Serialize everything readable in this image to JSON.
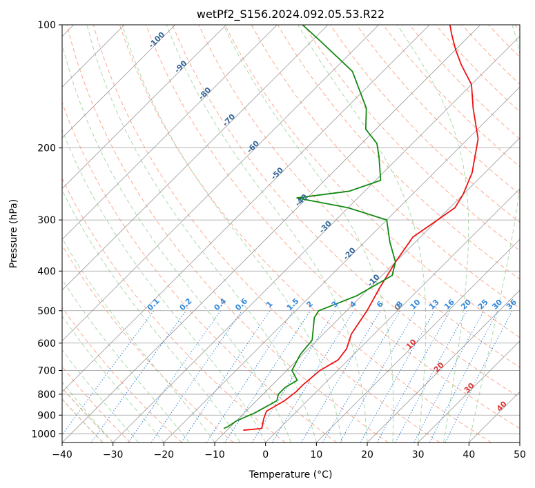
{
  "chart_data": {
    "type": "line",
    "title": "wetPf2_S156.2024.092.05.53.R22",
    "xlabel": "Temperature (°C)",
    "ylabel": "Pressure (hPa)",
    "xlim": [
      -40,
      50
    ],
    "ylim": [
      1050,
      100
    ],
    "y_scale": "log",
    "skew": 45,
    "x_ticks": [
      "−40",
      "−30",
      "−20",
      "−10",
      "0",
      "10",
      "20",
      "30",
      "40",
      "50"
    ],
    "x_tick_values": [
      -40,
      -30,
      -20,
      -10,
      0,
      10,
      20,
      30,
      40,
      50
    ],
    "y_ticks": [
      "1000",
      "900",
      "800",
      "700",
      "600",
      "500",
      "400",
      "300",
      "200",
      "100"
    ],
    "y_tick_values": [
      1000,
      900,
      800,
      700,
      600,
      500,
      400,
      300,
      200,
      100
    ],
    "grid": true,
    "colors": {
      "temperature": "#ee1111",
      "dewpoint": "#118811",
      "isotherm": "#999999",
      "dry_adiabat": "#fca98d",
      "moist_adiabat": "#a9d9a9",
      "mixing_ratio": "#3388dd",
      "ice_adiabat": "#d9c2a6",
      "dry_label": "#dd3333",
      "moist_label": "#336699",
      "mixing_label": "#3388dd"
    },
    "series": [
      {
        "name": "temperature",
        "points": [
          [
            -6.8,
            980
          ],
          [
            -3.5,
            970
          ],
          [
            -5,
            920
          ],
          [
            -6,
            880
          ],
          [
            -4.5,
            830
          ],
          [
            -4,
            790
          ],
          [
            -4,
            760
          ],
          [
            -3.5,
            700
          ],
          [
            -2,
            660
          ],
          [
            -2.5,
            620
          ],
          [
            -4.5,
            570
          ],
          [
            -6,
            500
          ],
          [
            -8,
            440
          ],
          [
            -10,
            380
          ],
          [
            -11.5,
            330
          ],
          [
            -10,
            300
          ],
          [
            -9,
            280
          ],
          [
            -10,
            260
          ],
          [
            -12.5,
            230
          ],
          [
            -18,
            190
          ],
          [
            -25,
            160
          ],
          [
            -30,
            140
          ],
          [
            -36,
            125
          ],
          [
            -40,
            115
          ],
          [
            -44,
            105
          ],
          [
            -46,
            100
          ]
        ]
      },
      {
        "name": "dewpoint",
        "points": [
          [
            -11,
            970
          ],
          [
            -10.5,
            960
          ],
          [
            -10,
            930
          ],
          [
            -8,
            890
          ],
          [
            -7,
            860
          ],
          [
            -6,
            830
          ],
          [
            -7,
            800
          ],
          [
            -7,
            770
          ],
          [
            -6,
            740
          ],
          [
            -9,
            700
          ],
          [
            -10.5,
            640
          ],
          [
            -11,
            590
          ],
          [
            -15,
            520
          ],
          [
            -15.5,
            500
          ],
          [
            -11,
            460
          ],
          [
            -8,
            410
          ],
          [
            -10,
            380
          ],
          [
            -15,
            340
          ],
          [
            -20,
            300
          ],
          [
            -30,
            280
          ],
          [
            -42,
            265
          ],
          [
            -33,
            255
          ],
          [
            -29,
            240
          ],
          [
            -34,
            210
          ],
          [
            -37,
            195
          ],
          [
            -42,
            180
          ],
          [
            -46,
            160
          ],
          [
            -56,
            130
          ],
          [
            -68,
            110
          ],
          [
            -75,
            100
          ]
        ]
      }
    ],
    "isotherm_values": [
      -120,
      -110,
      -100,
      -90,
      -80,
      -70,
      -60,
      -50,
      -40,
      -30,
      -20,
      -10,
      0,
      10,
      20,
      30,
      40,
      50
    ],
    "dry_adiabat_values": [
      -30,
      -20,
      -10,
      0,
      10,
      20,
      30,
      40,
      50,
      60,
      70,
      80,
      90,
      100,
      110,
      120,
      130,
      140,
      150,
      160,
      170,
      180,
      190,
      200,
      210,
      220
    ],
    "moist_adiabat_values": [
      -30,
      -25,
      -20,
      -15,
      -10,
      -5,
      0,
      5,
      10,
      15,
      20,
      25,
      30,
      35,
      40
    ],
    "mixing_ratio_values": [
      0.1,
      0.2,
      0.4,
      0.6,
      1,
      1.5,
      2,
      3,
      4,
      6,
      8,
      10,
      13,
      16,
      20,
      25,
      30,
      36
    ],
    "isotherm_labels": [
      "-100",
      "-90",
      "-80",
      "-70",
      "-60",
      "-50",
      "-40",
      "-30",
      "-20",
      "-10",
      "0"
    ],
    "isotherm_label_values": [
      -100,
      -90,
      -80,
      -70,
      -60,
      -50,
      -40,
      -30,
      -20,
      -10,
      0
    ],
    "dry_adiabat_labels": [
      "10",
      "20",
      "30",
      "40"
    ],
    "dry_adiabat_label_values": [
      10,
      20,
      30,
      40
    ],
    "mixing_ratio_labels": [
      "0.1",
      "0.2",
      "0.4",
      "0.6",
      "1",
      "1.5",
      "2",
      "3",
      "4",
      "6",
      "8",
      "10",
      "13",
      "16",
      "20",
      "25",
      "30",
      "36"
    ]
  }
}
